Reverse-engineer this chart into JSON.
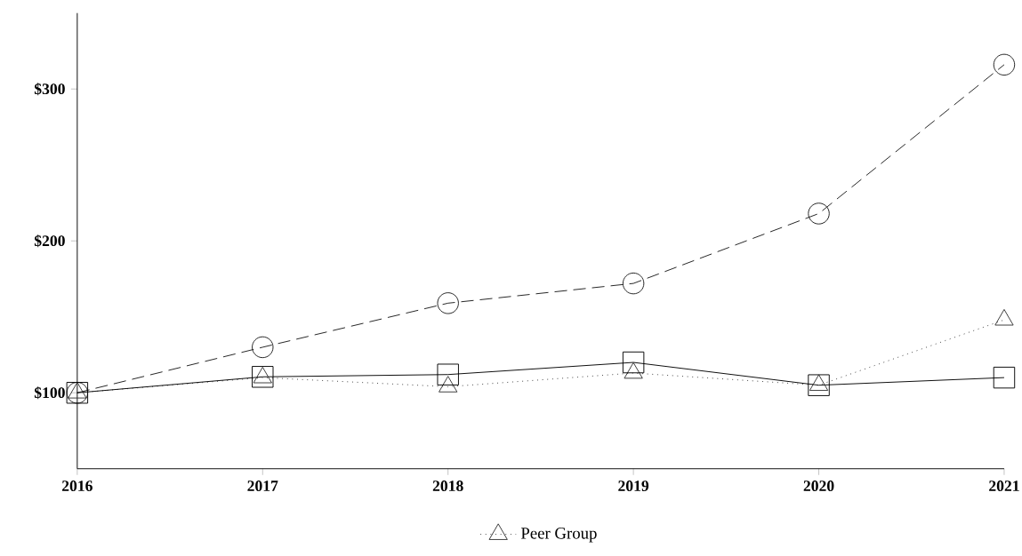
{
  "chart_data": {
    "type": "line",
    "x": [
      2016,
      2017,
      2018,
      2019,
      2020,
      2021
    ],
    "series": [
      {
        "color": "#000000",
        "marker": "square",
        "line_style": "solid",
        "values": [
          100,
          110.5,
          112,
          120,
          105,
          110
        ]
      },
      {
        "color": "#1a1a1a",
        "marker": "circle",
        "line_style": "dashed",
        "values": [
          100,
          130,
          159,
          172,
          218,
          316
        ]
      },
      {
        "name": "Peer Group",
        "color": "#333333",
        "marker": "triangle",
        "line_style": "dotted",
        "values": [
          100,
          110,
          104,
          113,
          105,
          148
        ]
      }
    ],
    "xlim": [
      2016,
      2021
    ],
    "xticks": [
      2016,
      2017,
      2018,
      2019,
      2020,
      2021
    ],
    "ylim": [
      50,
      350
    ],
    "yticks": [
      {
        "value": 100,
        "label": "$100"
      },
      {
        "value": 200,
        "label": "$200"
      },
      {
        "value": 300,
        "label": "$300"
      }
    ],
    "legend": "bottom"
  }
}
